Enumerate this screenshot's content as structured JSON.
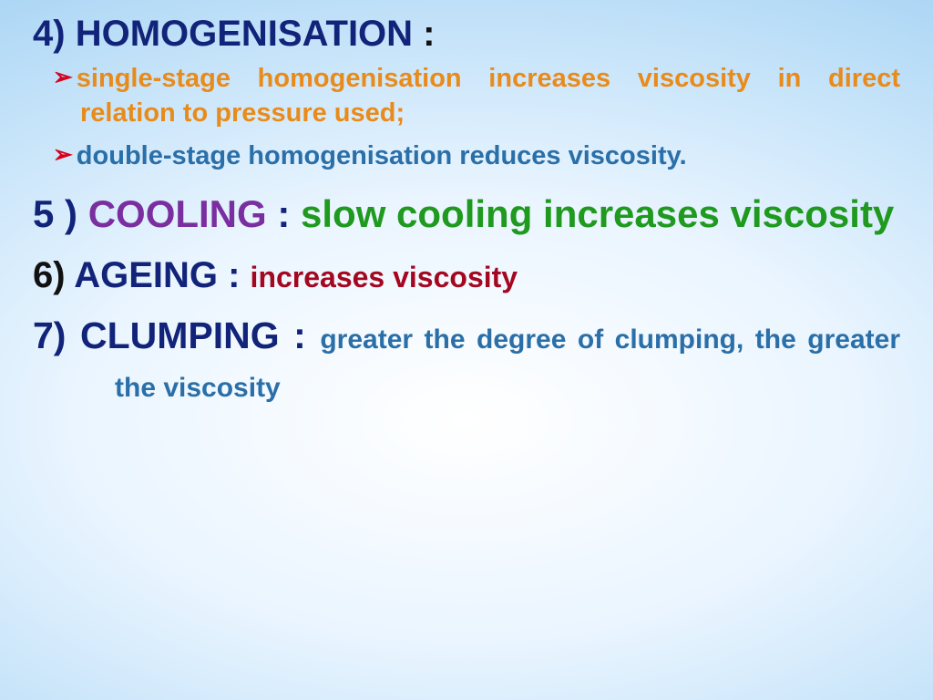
{
  "colors": {
    "navy": "#12247a",
    "orange": "#e88b1a",
    "steelblue": "#2a6fa8",
    "red": "#d6001c",
    "purple": "#7a2fa0",
    "green": "#1f9a1f",
    "darkred": "#a30820",
    "black": "#111111"
  },
  "sections": {
    "homogenisation": {
      "num": "4) ",
      "title": "HOMOGENISATION ",
      "colon": ":",
      "bullet1": "single-stage homogenisation increases viscosity in direct relation to pressure used;",
      "bullet2": "double-stage homogenisation reduces viscosity."
    },
    "cooling": {
      "num": "5 ) ",
      "title": "COOLING ",
      "colon": ": ",
      "body": "slow cooling increases viscosity"
    },
    "ageing": {
      "num": "6) ",
      "title": "AGEING ",
      "colon": ": ",
      "body": "increases viscosity"
    },
    "clumping": {
      "num": "7) ",
      "title": "CLUMPING ",
      "colon": ": ",
      "body": "greater the degree of clumping, the greater the viscosity"
    }
  }
}
